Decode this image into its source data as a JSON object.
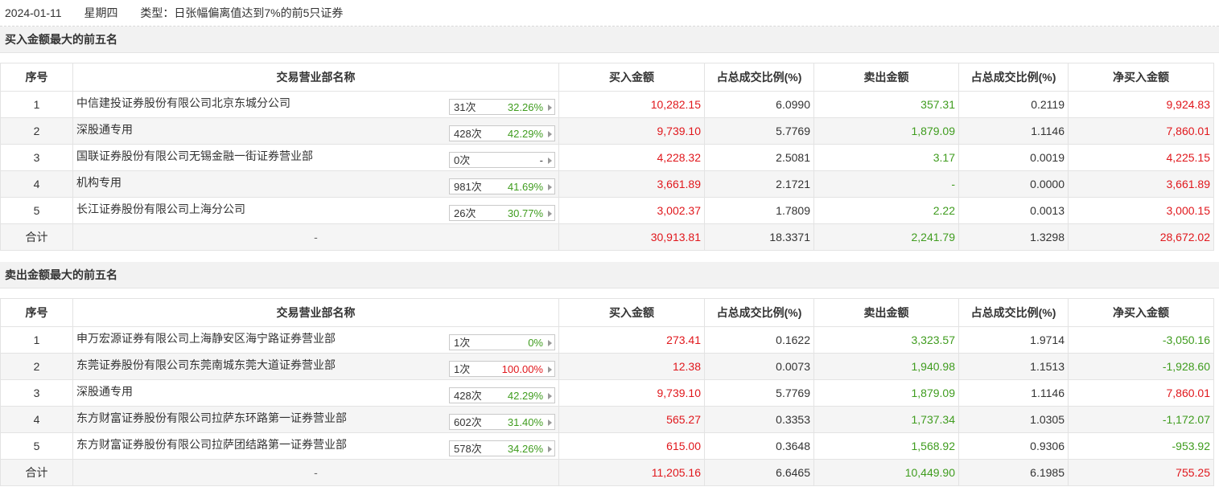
{
  "topbar": {
    "date": "2024-01-11",
    "weekday": "星期四",
    "type_label": "类型：日张幅偏离值达到7%的前5只证券"
  },
  "headers": [
    "序号",
    "交易营业部名称",
    "买入金额",
    "占总成交比例(%)",
    "卖出金额",
    "占总成交比例(%)",
    "净买入金额"
  ],
  "buy_section": {
    "title": "买入金额最大的前五名",
    "rows": [
      {
        "idx": "1",
        "name": "中信建投证券股份有限公司北京东城分公司",
        "count": "31次",
        "rate": "32.26%",
        "rate_color": "green",
        "buy": "10,282.15",
        "buy_pct": "6.0990",
        "sell": "357.31",
        "sell_pct": "0.2119",
        "net": "9,924.83",
        "net_color": "red"
      },
      {
        "idx": "2",
        "name": "深股通专用",
        "count": "428次",
        "rate": "42.29%",
        "rate_color": "green",
        "buy": "9,739.10",
        "buy_pct": "5.7769",
        "sell": "1,879.09",
        "sell_pct": "1.1146",
        "net": "7,860.01",
        "net_color": "red"
      },
      {
        "idx": "3",
        "name": "国联证券股份有限公司无锡金融一街证券营业部",
        "count": "0次",
        "rate": "-",
        "rate_color": "black",
        "buy": "4,228.32",
        "buy_pct": "2.5081",
        "sell": "3.17",
        "sell_pct": "0.0019",
        "net": "4,225.15",
        "net_color": "red"
      },
      {
        "idx": "4",
        "name": "机构专用",
        "count": "981次",
        "rate": "41.69%",
        "rate_color": "green",
        "buy": "3,661.89",
        "buy_pct": "2.1721",
        "sell": "-",
        "sell_pct": "0.0000",
        "net": "3,661.89",
        "net_color": "red"
      },
      {
        "idx": "5",
        "name": "长江证券股份有限公司上海分公司",
        "count": "26次",
        "rate": "30.77%",
        "rate_color": "green",
        "buy": "3,002.37",
        "buy_pct": "1.7809",
        "sell": "2.22",
        "sell_pct": "0.0013",
        "net": "3,000.15",
        "net_color": "red"
      }
    ],
    "total": {
      "label": "合计",
      "name": "-",
      "buy": "30,913.81",
      "buy_pct": "18.3371",
      "sell": "2,241.79",
      "sell_pct": "1.3298",
      "net": "28,672.02",
      "net_color": "red"
    }
  },
  "sell_section": {
    "title": "卖出金额最大的前五名",
    "rows": [
      {
        "idx": "1",
        "name": "申万宏源证券有限公司上海静安区海宁路证券营业部",
        "count": "1次",
        "rate": "0%",
        "rate_color": "green",
        "buy": "273.41",
        "buy_pct": "0.1622",
        "sell": "3,323.57",
        "sell_pct": "1.9714",
        "net": "-3,050.16",
        "net_color": "green"
      },
      {
        "idx": "2",
        "name": "东莞证券股份有限公司东莞南城东莞大道证券营业部",
        "count": "1次",
        "rate": "100.00%",
        "rate_color": "red",
        "buy": "12.38",
        "buy_pct": "0.0073",
        "sell": "1,940.98",
        "sell_pct": "1.1513",
        "net": "-1,928.60",
        "net_color": "green"
      },
      {
        "idx": "3",
        "name": "深股通专用",
        "count": "428次",
        "rate": "42.29%",
        "rate_color": "green",
        "buy": "9,739.10",
        "buy_pct": "5.7769",
        "sell": "1,879.09",
        "sell_pct": "1.1146",
        "net": "7,860.01",
        "net_color": "red"
      },
      {
        "idx": "4",
        "name": "东方财富证券股份有限公司拉萨东环路第一证券营业部",
        "count": "602次",
        "rate": "31.40%",
        "rate_color": "green",
        "buy": "565.27",
        "buy_pct": "0.3353",
        "sell": "1,737.34",
        "sell_pct": "1.0305",
        "net": "-1,172.07",
        "net_color": "green"
      },
      {
        "idx": "5",
        "name": "东方财富证券股份有限公司拉萨团结路第一证券营业部",
        "count": "578次",
        "rate": "34.26%",
        "rate_color": "green",
        "buy": "615.00",
        "buy_pct": "0.3648",
        "sell": "1,568.92",
        "sell_pct": "0.9306",
        "net": "-953.92",
        "net_color": "green"
      }
    ],
    "total": {
      "label": "合计",
      "name": "-",
      "buy": "11,205.16",
      "buy_pct": "6.6465",
      "sell": "10,449.90",
      "sell_pct": "6.1985",
      "net": "755.25",
      "net_color": "red"
    }
  },
  "colors": {
    "up": "#e0171c",
    "down": "#3f9c1e",
    "header_bg": "#f2f2f2",
    "stripe": "#f5f5f5"
  }
}
